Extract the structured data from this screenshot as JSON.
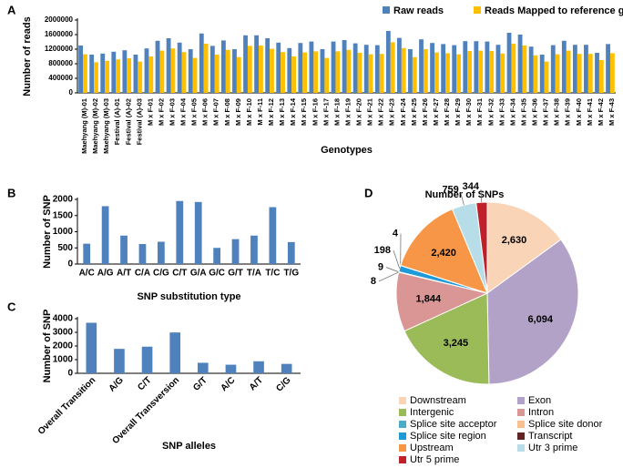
{
  "chart_data": [
    {
      "panel": "A",
      "type": "bar",
      "xlabel": "Genotypes",
      "ylabel": "Number of reads",
      "categories": [
        "Maehyang (M)-01",
        "Maehyang (M)-02",
        "Maehyang (M)-03",
        "Festival (A)-01",
        "Festival (A)-02",
        "Festival (A)-03",
        "M x F-01",
        "M x F-02",
        "M x F-03",
        "M x F-04",
        "M x F-05",
        "M x F-06",
        "M x F-07",
        "M x F-08",
        "M x F-09",
        "M x F-10",
        "M x F-11",
        "M x F-12",
        "M x F-13",
        "M x F-14",
        "M x F-15",
        "M x F-16",
        "M x F-17",
        "M x F-18",
        "M x F-19",
        "M x F-20",
        "M x F-21",
        "M x F-22",
        "M x F-23",
        "M x F-24",
        "M x F-25",
        "M x F-26",
        "M x F-27",
        "M x F-28",
        "M x F-29",
        "M x F-30",
        "M x F-31",
        "M x F-32",
        "M x F-33",
        "M x F-34",
        "M x F-35",
        "M x F-36",
        "M x F-37",
        "M x F-38",
        "M x F-39",
        "M x F-40",
        "M x F-41",
        "M x F-42",
        "M x F-43"
      ],
      "series": [
        {
          "name": "Raw reads",
          "color": "#4f81bd",
          "values": [
            1300000,
            1050000,
            1080000,
            1130000,
            1170000,
            1050000,
            1220000,
            1430000,
            1500000,
            1380000,
            1200000,
            1630000,
            1290000,
            1440000,
            1200000,
            1580000,
            1580000,
            1500000,
            1380000,
            1230000,
            1370000,
            1410000,
            1200000,
            1410000,
            1450000,
            1360000,
            1320000,
            1310000,
            1700000,
            1510000,
            1200000,
            1470000,
            1370000,
            1340000,
            1310000,
            1420000,
            1420000,
            1410000,
            1320000,
            1650000,
            1600000,
            1270000,
            1050000,
            1310000,
            1430000,
            1320000,
            1320000,
            1100000,
            1340000
          ]
        },
        {
          "name": "Reads Mapped to reference genome",
          "color": "#ffc000",
          "values": [
            1060000,
            840000,
            880000,
            920000,
            950000,
            860000,
            1000000,
            1160000,
            1220000,
            1120000,
            960000,
            1350000,
            1050000,
            1180000,
            980000,
            1290000,
            1300000,
            1210000,
            1120000,
            1000000,
            1110000,
            1140000,
            960000,
            1140000,
            1180000,
            1100000,
            1060000,
            1070000,
            1390000,
            1230000,
            980000,
            1200000,
            1110000,
            1090000,
            1060000,
            1150000,
            1160000,
            1150000,
            1080000,
            1350000,
            1300000,
            1030000,
            860000,
            1060000,
            1160000,
            1070000,
            1070000,
            900000,
            1090000
          ]
        }
      ],
      "ylim": [
        0,
        2000000
      ],
      "yticks": [
        0,
        400000,
        800000,
        1200000,
        1600000,
        2000000
      ],
      "legend": "top-right"
    },
    {
      "panel": "B",
      "type": "bar",
      "xlabel": "SNP substitution type",
      "ylabel": "Number of SNP",
      "categories": [
        "A/C",
        "A/G",
        "A/T",
        "C/A",
        "C/G",
        "C/T",
        "G/A",
        "G/C",
        "G/T",
        "T/A",
        "T/C",
        "T/G"
      ],
      "values": [
        630,
        1790,
        880,
        620,
        690,
        1950,
        1920,
        500,
        770,
        880,
        1760,
        680
      ],
      "color": "#4f81bd",
      "ylim": [
        0,
        2000
      ],
      "yticks": [
        0,
        500,
        1000,
        1500,
        2000
      ]
    },
    {
      "panel": "C",
      "type": "bar",
      "xlabel": "SNP alleles",
      "ylabel": "Number of SNP",
      "categories": [
        "Overall Transition",
        "A/G",
        "C/T",
        "Overall Transversion",
        "G/T",
        "A/C",
        "A/T",
        "C/G"
      ],
      "values": [
        3700,
        1790,
        1950,
        2990,
        770,
        630,
        880,
        690
      ],
      "color": "#4f81bd",
      "ylim": [
        0,
        4000
      ],
      "yticks": [
        0,
        1000,
        2000,
        3000,
        4000
      ]
    },
    {
      "panel": "D",
      "type": "pie",
      "title": "Number of SNPs",
      "categories": [
        "Downstream",
        "Exon",
        "Intergenic",
        "Intron",
        "Splice site acceptor",
        "Splice site donor",
        "Splice site region",
        "Transcript",
        "Upstream",
        "Utr 3 prime",
        "Utr 5 prime"
      ],
      "values": [
        2630,
        6094,
        3245,
        1844,
        8,
        9,
        198,
        4,
        2420,
        759,
        344
      ],
      "value_labels": [
        "2,630",
        "6,094",
        "3,245",
        "1,844",
        "8",
        "9",
        "198",
        "4",
        "2,420",
        "759",
        "344"
      ],
      "colors": [
        "#fad4b6",
        "#b3a2c7",
        "#9bbb59",
        "#d99694",
        "#4bacc6",
        "#fac090",
        "#1e9bd7",
        "#632523",
        "#f79646",
        "#b7dee8",
        "#c0202a"
      ],
      "legend": "bottom"
    }
  ]
}
